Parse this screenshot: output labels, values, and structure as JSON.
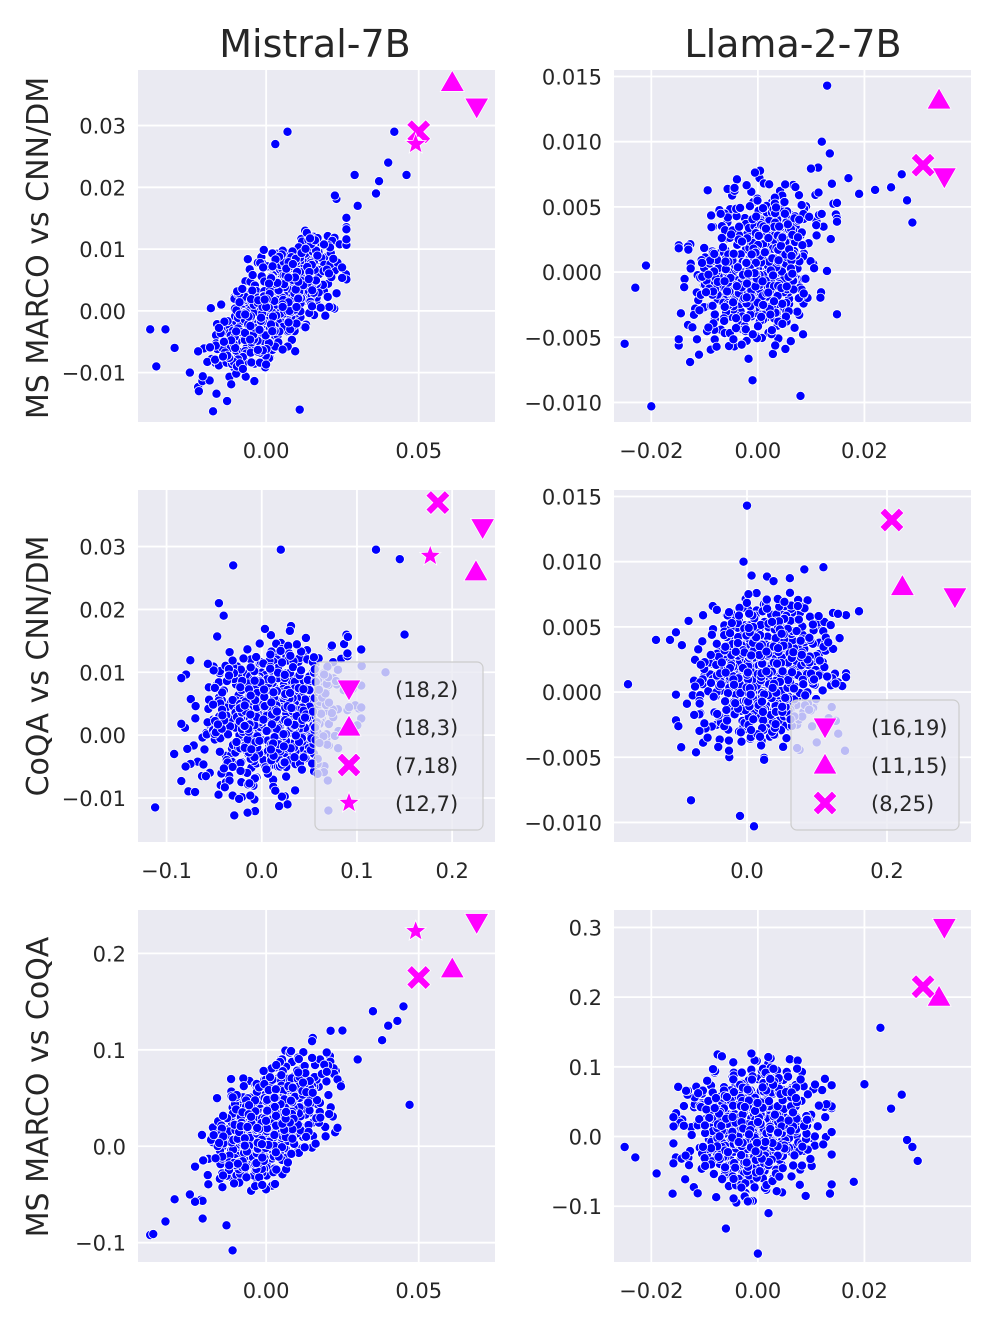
{
  "figure": {
    "col_titles": [
      "Mistral-7B",
      "Llama-2-7B"
    ],
    "row_labels": [
      "MS MARCO vs CNN/DM",
      "CoQA vs CNN/DM",
      "MS MARCO vs CoQA"
    ]
  },
  "colors": {
    "background": "#eaeaf2",
    "grid": "#ffffff",
    "points": "#0000ff",
    "points_edge": "#ffffff",
    "highlight": "#ff00ff"
  },
  "chart_data": [
    {
      "type": "scatter",
      "model": "Mistral-7B",
      "comparison": "MS MARCO vs CNN/DM",
      "xlim": [
        -0.042,
        0.075
      ],
      "ylim": [
        -0.018,
        0.039
      ],
      "xticks": [
        0.0,
        0.05
      ],
      "xtick_labels": [
        "0.00",
        "0.05"
      ],
      "yticks": [
        -0.01,
        0.0,
        0.01,
        0.02,
        0.03
      ],
      "ytick_labels": [
        "−0.01",
        "0.00",
        "0.01",
        "0.02",
        "0.03"
      ],
      "cloud": {
        "n": 800,
        "center": [
          0.002,
          0.001
        ],
        "sd": [
          0.009,
          0.005
        ],
        "corr": 0.65,
        "seed": 11
      },
      "outliers": [
        [
          -0.038,
          -0.003
        ],
        [
          -0.036,
          -0.009
        ],
        [
          -0.033,
          -0.003
        ],
        [
          -0.03,
          -0.006
        ],
        [
          -0.025,
          -0.01
        ],
        [
          0.003,
          0.027
        ],
        [
          0.007,
          0.029
        ],
        [
          0.011,
          -0.016
        ],
        [
          0.029,
          0.022
        ],
        [
          0.037,
          0.021
        ],
        [
          0.04,
          0.024
        ],
        [
          0.042,
          0.029
        ],
        [
          0.046,
          0.022
        ],
        [
          0.03,
          0.017
        ],
        [
          0.036,
          0.019
        ]
      ],
      "highlights": [
        {
          "marker": "triangle-down",
          "x": 0.069,
          "y": 0.033
        },
        {
          "marker": "triangle-up",
          "x": 0.061,
          "y": 0.037
        },
        {
          "marker": "x",
          "x": 0.05,
          "y": 0.029
        },
        {
          "marker": "star",
          "x": 0.049,
          "y": 0.027
        }
      ]
    },
    {
      "type": "scatter",
      "model": "Llama-2-7B",
      "comparison": "MS MARCO vs CNN/DM",
      "xlim": [
        -0.027,
        0.04
      ],
      "ylim": [
        -0.0115,
        0.0155
      ],
      "xticks": [
        -0.02,
        0.0,
        0.02
      ],
      "xtick_labels": [
        "−0.02",
        "0.00",
        "0.02"
      ],
      "yticks": [
        -0.01,
        -0.005,
        0.0,
        0.005,
        0.01,
        0.015
      ],
      "ytick_labels": [
        "−0.010",
        "−0.005",
        "0.000",
        "0.005",
        "0.010",
        "0.015"
      ],
      "cloud": {
        "n": 800,
        "center": [
          0.0,
          0.0005
        ],
        "sd": [
          0.0055,
          0.0028
        ],
        "corr": 0.3,
        "seed": 22
      },
      "outliers": [
        [
          -0.025,
          -0.0055
        ],
        [
          -0.02,
          -0.0103
        ],
        [
          -0.023,
          -0.0012
        ],
        [
          -0.021,
          0.0005
        ],
        [
          0.013,
          0.0143
        ],
        [
          0.012,
          0.01
        ],
        [
          0.008,
          -0.0095
        ],
        [
          -0.001,
          -0.0083
        ],
        [
          0.025,
          0.0065
        ],
        [
          0.027,
          0.0075
        ],
        [
          0.028,
          0.0055
        ],
        [
          0.029,
          0.0038
        ],
        [
          0.022,
          0.0063
        ],
        [
          0.019,
          0.006
        ],
        [
          0.017,
          0.0072
        ]
      ],
      "highlights": [
        {
          "marker": "triangle-down",
          "x": 0.035,
          "y": 0.0073
        },
        {
          "marker": "triangle-up",
          "x": 0.034,
          "y": 0.0132
        },
        {
          "marker": "x",
          "x": 0.031,
          "y": 0.0082
        }
      ]
    },
    {
      "type": "scatter",
      "model": "Mistral-7B",
      "comparison": "CoQA vs CNN/DM",
      "xlim": [
        -0.13,
        0.245
      ],
      "ylim": [
        -0.017,
        0.039
      ],
      "xticks": [
        -0.1,
        0.0,
        0.1,
        0.2
      ],
      "xtick_labels": [
        "−0.1",
        "0.0",
        "0.1",
        "0.2"
      ],
      "yticks": [
        -0.01,
        0.0,
        0.01,
        0.02,
        0.03
      ],
      "ytick_labels": [
        "−0.01",
        "0.00",
        "0.01",
        "0.02",
        "0.03"
      ],
      "cloud": {
        "n": 900,
        "center": [
          0.01,
          0.003
        ],
        "sd": [
          0.035,
          0.0055
        ],
        "corr": 0.2,
        "seed": 33
      },
      "outliers": [
        [
          -0.112,
          -0.0115
        ],
        [
          -0.092,
          -0.003
        ],
        [
          -0.08,
          -0.005
        ],
        [
          -0.03,
          0.027
        ],
        [
          0.02,
          0.0295
        ],
        [
          0.12,
          0.0295
        ],
        [
          0.145,
          0.028
        ],
        [
          0.09,
          0.013
        ],
        [
          0.105,
          0.011
        ],
        [
          0.13,
          0.01
        ],
        [
          0.15,
          0.016
        ],
        [
          -0.04,
          0.019
        ],
        [
          -0.045,
          0.021
        ],
        [
          0.07,
          -0.012
        ]
      ],
      "highlights": [
        {
          "marker": "triangle-down",
          "x": 0.232,
          "y": 0.033
        },
        {
          "marker": "triangle-up",
          "x": 0.225,
          "y": 0.026
        },
        {
          "marker": "x",
          "x": 0.185,
          "y": 0.037
        },
        {
          "marker": "star",
          "x": 0.177,
          "y": 0.0285
        }
      ],
      "legend": {
        "placement": "lower-right",
        "entries": [
          {
            "marker": "triangle-down",
            "label": "(18,2)"
          },
          {
            "marker": "triangle-up",
            "label": "(18,3)"
          },
          {
            "marker": "x",
            "label": "(7,18)"
          },
          {
            "marker": "star",
            "label": "(12,7)"
          }
        ]
      }
    },
    {
      "type": "scatter",
      "model": "Llama-2-7B",
      "comparison": "CoQA vs CNN/DM",
      "xlim": [
        -0.19,
        0.32
      ],
      "ylim": [
        -0.0115,
        0.0155
      ],
      "xticks": [
        0.0,
        0.2
      ],
      "xtick_labels": [
        "0.0",
        "0.2"
      ],
      "yticks": [
        -0.01,
        -0.005,
        0.0,
        0.005,
        0.01,
        0.015
      ],
      "ytick_labels": [
        "−0.010",
        "−0.005",
        "0.000",
        "0.005",
        "0.010",
        "0.015"
      ],
      "cloud": {
        "n": 800,
        "center": [
          0.02,
          0.0015
        ],
        "sd": [
          0.045,
          0.0028
        ],
        "corr": 0.1,
        "seed": 44
      },
      "outliers": [
        [
          -0.17,
          0.0006
        ],
        [
          -0.13,
          0.004
        ],
        [
          -0.11,
          0.004
        ],
        [
          0.0,
          0.0143
        ],
        [
          -0.005,
          0.01
        ],
        [
          -0.08,
          -0.0083
        ],
        [
          -0.01,
          -0.0095
        ],
        [
          0.01,
          -0.0103
        ],
        [
          0.14,
          -0.0045
        ],
        [
          0.16,
          0.0062
        ],
        [
          0.13,
          0.006
        ],
        [
          0.12,
          -0.006
        ]
      ],
      "highlights": [
        {
          "marker": "triangle-down",
          "x": 0.297,
          "y": 0.0073
        },
        {
          "marker": "triangle-up",
          "x": 0.222,
          "y": 0.0081
        },
        {
          "marker": "x",
          "x": 0.207,
          "y": 0.0132
        }
      ],
      "legend": {
        "placement": "lower-right",
        "entries": [
          {
            "marker": "triangle-down",
            "label": "(16,19)"
          },
          {
            "marker": "triangle-up",
            "label": "(11,15)"
          },
          {
            "marker": "x",
            "label": "(8,25)"
          }
        ]
      }
    },
    {
      "type": "scatter",
      "model": "Mistral-7B",
      "comparison": "MS MARCO vs CoQA",
      "xlim": [
        -0.042,
        0.075
      ],
      "ylim": [
        -0.12,
        0.245
      ],
      "xticks": [
        0.0,
        0.05
      ],
      "xtick_labels": [
        "0.00",
        "0.05"
      ],
      "yticks": [
        -0.1,
        0.0,
        0.1,
        0.2
      ],
      "ytick_labels": [
        "−0.1",
        "0.0",
        "0.1",
        "0.2"
      ],
      "cloud": {
        "n": 800,
        "center": [
          0.001,
          0.025
        ],
        "sd": [
          0.009,
          0.03
        ],
        "corr": 0.55,
        "seed": 55
      },
      "outliers": [
        [
          -0.038,
          -0.092
        ],
        [
          -0.037,
          -0.091
        ],
        [
          -0.033,
          -0.078
        ],
        [
          -0.03,
          -0.055
        ],
        [
          -0.025,
          -0.05
        ],
        [
          -0.011,
          -0.108
        ],
        [
          -0.013,
          -0.082
        ],
        [
          0.04,
          0.125
        ],
        [
          0.043,
          0.13
        ],
        [
          0.045,
          0.145
        ],
        [
          0.047,
          0.043
        ],
        [
          0.035,
          0.14
        ],
        [
          0.038,
          0.11
        ],
        [
          0.03,
          0.09
        ],
        [
          0.025,
          0.12
        ]
      ],
      "highlights": [
        {
          "marker": "triangle-down",
          "x": 0.069,
          "y": 0.232
        },
        {
          "marker": "triangle-up",
          "x": 0.061,
          "y": 0.184
        },
        {
          "marker": "x",
          "x": 0.05,
          "y": 0.175
        },
        {
          "marker": "star",
          "x": 0.049,
          "y": 0.223
        }
      ]
    },
    {
      "type": "scatter",
      "model": "Llama-2-7B",
      "comparison": "MS MARCO vs CoQA",
      "xlim": [
        -0.027,
        0.04
      ],
      "ylim": [
        -0.18,
        0.325
      ],
      "xticks": [
        -0.02,
        0.0,
        0.02
      ],
      "xtick_labels": [
        "−0.02",
        "0.00",
        "0.02"
      ],
      "yticks": [
        -0.1,
        0.0,
        0.1,
        0.2,
        0.3
      ],
      "ytick_labels": [
        "−0.1",
        "0.0",
        "0.1",
        "0.2",
        "0.3"
      ],
      "cloud": {
        "n": 800,
        "center": [
          -0.001,
          0.015
        ],
        "sd": [
          0.0055,
          0.04
        ],
        "corr": 0.1,
        "seed": 66
      },
      "outliers": [
        [
          -0.025,
          -0.015
        ],
        [
          -0.023,
          -0.03
        ],
        [
          -0.019,
          -0.053
        ],
        [
          -0.016,
          -0.082
        ],
        [
          0.0,
          -0.168
        ],
        [
          -0.006,
          -0.132
        ],
        [
          0.002,
          -0.11
        ],
        [
          0.023,
          0.156
        ],
        [
          0.028,
          -0.005
        ],
        [
          0.029,
          -0.015
        ],
        [
          0.03,
          -0.035
        ],
        [
          0.027,
          0.06
        ],
        [
          0.025,
          0.04
        ],
        [
          0.02,
          0.075
        ],
        [
          0.018,
          -0.065
        ]
      ],
      "highlights": [
        {
          "marker": "triangle-down",
          "x": 0.035,
          "y": 0.3
        },
        {
          "marker": "triangle-up",
          "x": 0.034,
          "y": 0.2
        },
        {
          "marker": "x",
          "x": 0.031,
          "y": 0.215
        }
      ]
    }
  ]
}
